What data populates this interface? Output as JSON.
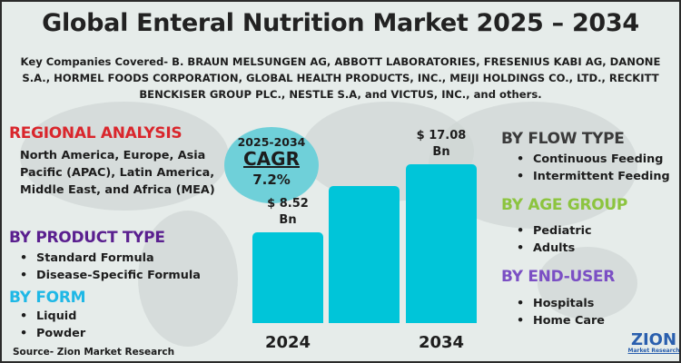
{
  "title": "Global Enteral Nutrition Market 2025 – 2034",
  "subtitle": "Key Companies Covered- B. BRAUN MELSUNGEN AG, ABBOTT LABORATORIES, FRESENIUS KABI AG, DANONE S.A., HORMEL FOODS CORPORATION, GLOBAL HEALTH PRODUCTS, INC., MEIJI HOLDINGS CO., LTD., RECKITT BENCKISER GROUP PLC., NESTLE S.A, and VICTUS, INC., and others.",
  "regional": {
    "heading": "REGIONAL ANALYSIS",
    "text": "North America, Europe, Asia Pacific (APAC), Latin America, Middle East, and Africa (MEA)",
    "color": "#d9262c"
  },
  "product_type": {
    "heading": "BY PRODUCT TYPE",
    "items": [
      "Standard Formula",
      "Disease-Specific Formula"
    ],
    "color": "#5a1f8f"
  },
  "form": {
    "heading": "BY FORM",
    "items": [
      "Liquid",
      "Powder"
    ],
    "color": "#1fb8e6"
  },
  "flow_type": {
    "heading": "BY FLOW TYPE",
    "items": [
      "Continuous Feeding",
      "Intermittent Feeding"
    ],
    "color": "#3a3a3a"
  },
  "age_group": {
    "heading": "BY AGE GROUP",
    "items": [
      "Pediatric",
      "Adults"
    ],
    "color": "#8cc43f"
  },
  "end_user": {
    "heading": "BY END-USER",
    "items": [
      "Hospitals",
      "Home Care"
    ],
    "color": "#7b4fc4"
  },
  "cagr": {
    "period": "2025-2034",
    "label": "CAGR",
    "value": "7.2%"
  },
  "source": "Source- Zion Market Research",
  "logo": {
    "main": "ZION",
    "sub": "Market Research"
  },
  "chart_data": {
    "type": "bar",
    "categories": [
      "2024",
      "",
      "2034"
    ],
    "values": [
      8.52,
      null,
      17.08
    ],
    "data_labels": [
      "$ 8.52 Bn",
      "",
      "$ 17.08 Bn"
    ],
    "unit": "Bn",
    "bar_color": "#00c5d9"
  }
}
